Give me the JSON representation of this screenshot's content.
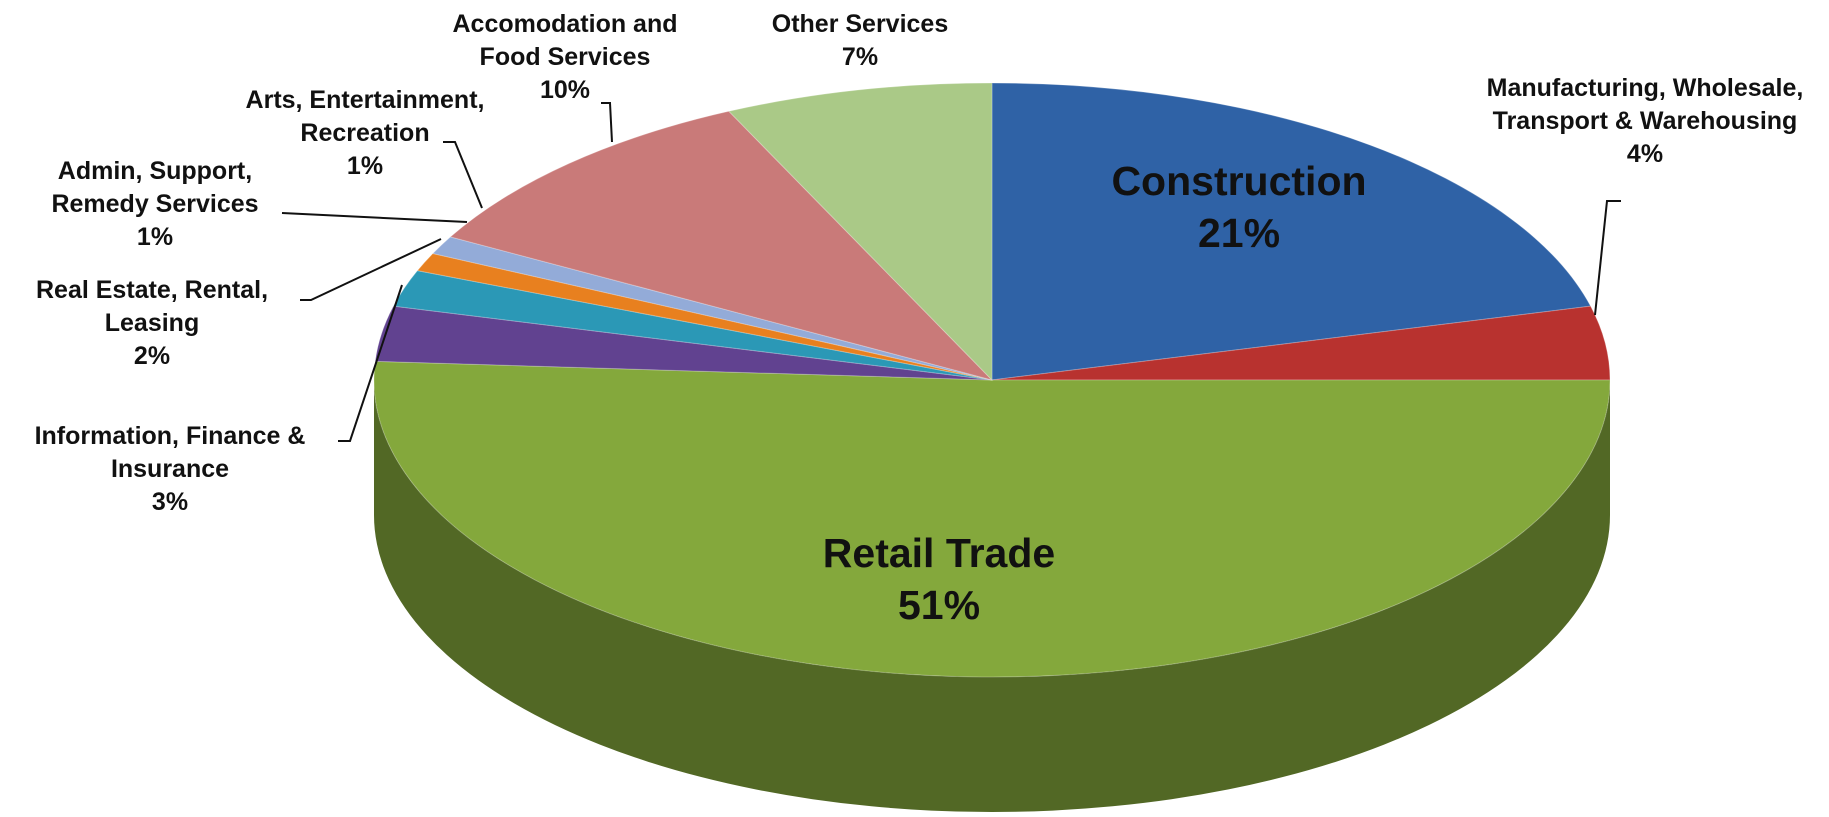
{
  "chart_data": {
    "type": "pie",
    "categories": [
      "Construction",
      "Manufacturing, Wholesale, Transport & Warehousing",
      "Retail Trade",
      "Information, Finance & Insurance",
      "Real Estate, Rental, Leasing",
      "Admin, Support, Remedy Services",
      "Arts, Entertainment, Recreation",
      "Accomodation and Food Services",
      "Other Services"
    ],
    "values": [
      21,
      4,
      51,
      3,
      2,
      1,
      1,
      10,
      7
    ],
    "value_labels": [
      "21%",
      "4%",
      "51%",
      "3%",
      "2%",
      "1%",
      "1%",
      "10%",
      "7%"
    ],
    "colors": [
      "#2f62a6",
      "#b8322f",
      "#84a83c",
      "#614290",
      "#2b98b6",
      "#e8801f",
      "#93abd8",
      "#c97a79",
      "#aac987"
    ]
  }
}
